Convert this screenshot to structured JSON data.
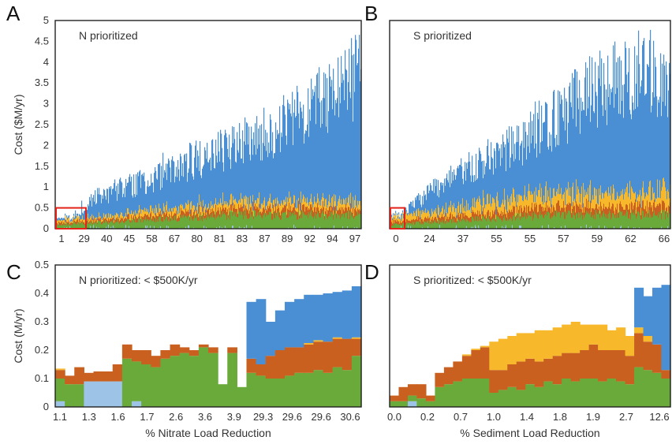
{
  "colors": {
    "total": "#4a8fd4",
    "orange": "#c9601f",
    "yellow": "#f7b92b",
    "green": "#6aaa3a",
    "lightblue": "#9dc3e6",
    "highlight": "#e2231a"
  },
  "chart_data": [
    {
      "panel": "A",
      "type": "bar",
      "title": "N prioritized",
      "ylabel": "Cost ($M/yr)",
      "xlabel": "",
      "ylim": [
        0,
        5
      ],
      "yticks": [
        "0",
        "0.5",
        "1",
        "1.5",
        "2",
        "2.5",
        "3",
        "3.5",
        "4",
        "4.5",
        "5"
      ],
      "xtick_labels": [
        "1",
        "29",
        "40",
        "45",
        "58",
        "67",
        "80",
        "81",
        "83",
        "87",
        "89",
        "92",
        "94",
        "97"
      ],
      "highlight_box": {
        "x_range": [
          "1",
          "29"
        ],
        "y_max": 0.5
      },
      "approx_series": [
        {
          "name": "",
          "color_key": "total",
          "envelope": [
            [
              0,
              0.05
            ],
            [
              0.08,
              0.35
            ],
            [
              0.12,
              0.9
            ],
            [
              0.2,
              1.2
            ],
            [
              0.3,
              1.5
            ],
            [
              0.4,
              1.9
            ],
            [
              0.5,
              2.3
            ],
            [
              0.6,
              2.6
            ],
            [
              0.7,
              3.0
            ],
            [
              0.8,
              3.5
            ],
            [
              0.9,
              4.2
            ],
            [
              1.0,
              4.8
            ]
          ]
        },
        {
          "name": "",
          "color_key": "yellow",
          "level": 0.5
        },
        {
          "name": "",
          "color_key": "orange",
          "level": 0.45
        },
        {
          "name": "",
          "color_key": "green",
          "level": 0.35
        }
      ]
    },
    {
      "panel": "B",
      "type": "bar",
      "title": "S prioritized",
      "ylabel": "",
      "xlabel": "",
      "ylim": [
        0,
        5
      ],
      "xtick_labels": [
        "0",
        "24",
        "37",
        "55",
        "55",
        "57",
        "59",
        "62",
        "66"
      ],
      "highlight_box": {
        "x_range": [
          "0",
          "24"
        ],
        "y_max": 0.5
      },
      "approx_series": [
        {
          "name": "",
          "color_key": "total",
          "envelope": [
            [
              0,
              0.05
            ],
            [
              0.05,
              0.5
            ],
            [
              0.15,
              1.2
            ],
            [
              0.3,
              2.0
            ],
            [
              0.45,
              2.6
            ],
            [
              0.6,
              3.5
            ],
            [
              0.75,
              4.4
            ],
            [
              0.9,
              4.8
            ],
            [
              1.0,
              4.5
            ]
          ]
        },
        {
          "name": "",
          "color_key": "yellow",
          "level": 1.0
        },
        {
          "name": "",
          "color_key": "orange",
          "level": 0.6
        },
        {
          "name": "",
          "color_key": "green",
          "level": 0.35
        }
      ]
    },
    {
      "panel": "C",
      "type": "bar",
      "title": "N prioritized: < $500K/yr",
      "ylabel": "Cost (M/yr)",
      "xlabel": "% Nitrate Load Reduction",
      "ylim": [
        0,
        0.5
      ],
      "yticks": [
        "0",
        "0.1",
        "0.2",
        "0.3",
        "0.4",
        "0.5"
      ],
      "xtick_labels": [
        "1.1",
        "1.3",
        "1.6",
        "1.7",
        "2.6",
        "3.6",
        "3.9",
        "29.3",
        "29.6",
        "29.6",
        "30.6"
      ],
      "stacks": [
        {
          "lightblue": 0.02,
          "green": 0.08,
          "orange": 0.03,
          "yellow": 0.005,
          "blue": 0
        },
        {
          "lightblue": 0,
          "green": 0.08,
          "orange": 0.03,
          "yellow": 0,
          "blue": 0
        },
        {
          "lightblue": 0,
          "green": 0.08,
          "orange": 0.06,
          "yellow": 0,
          "blue": 0
        },
        {
          "lightblue": 0.09,
          "green": 0,
          "orange": 0.03,
          "yellow": 0,
          "blue": 0
        },
        {
          "lightblue": 0.09,
          "green": 0,
          "orange": 0.035,
          "yellow": 0,
          "blue": 0
        },
        {
          "lightblue": 0.09,
          "green": 0,
          "orange": 0.035,
          "yellow": 0,
          "blue": 0
        },
        {
          "lightblue": 0.09,
          "green": 0,
          "orange": 0.06,
          "yellow": 0,
          "blue": 0
        },
        {
          "lightblue": 0,
          "green": 0.17,
          "orange": 0.05,
          "yellow": 0,
          "blue": 0
        },
        {
          "lightblue": 0.02,
          "green": 0.14,
          "orange": 0.04,
          "yellow": 0,
          "blue": 0
        },
        {
          "lightblue": 0,
          "green": 0.15,
          "orange": 0.05,
          "yellow": 0,
          "blue": 0
        },
        {
          "lightblue": 0,
          "green": 0.14,
          "orange": 0.04,
          "yellow": 0,
          "blue": 0
        },
        {
          "lightblue": 0,
          "green": 0.17,
          "orange": 0.03,
          "yellow": 0,
          "blue": 0
        },
        {
          "lightblue": 0,
          "green": 0.18,
          "orange": 0.04,
          "yellow": 0,
          "blue": 0
        },
        {
          "lightblue": 0,
          "green": 0.19,
          "orange": 0.02,
          "yellow": 0,
          "blue": 0
        },
        {
          "lightblue": 0,
          "green": 0.18,
          "orange": 0.02,
          "yellow": 0,
          "blue": 0
        },
        {
          "lightblue": 0,
          "green": 0.21,
          "orange": 0.01,
          "yellow": 0,
          "blue": 0
        },
        {
          "lightblue": 0,
          "green": 0.19,
          "orange": 0.02,
          "yellow": 0,
          "blue": 0
        },
        {
          "lightblue": 0,
          "green": 0.08,
          "orange": 0,
          "yellow": 0,
          "blue": 0
        },
        {
          "lightblue": 0,
          "green": 0.19,
          "orange": 0.02,
          "yellow": 0,
          "blue": 0
        },
        {
          "lightblue": 0,
          "green": 0.07,
          "orange": 0,
          "yellow": 0,
          "blue": 0
        },
        {
          "lightblue": 0,
          "green": 0.12,
          "orange": 0.05,
          "yellow": 0,
          "blue": 0.2
        },
        {
          "lightblue": 0,
          "green": 0.11,
          "orange": 0.04,
          "yellow": 0,
          "blue": 0.23
        },
        {
          "lightblue": 0,
          "green": 0.1,
          "orange": 0.08,
          "yellow": 0,
          "blue": 0.12
        },
        {
          "lightblue": 0,
          "green": 0.1,
          "orange": 0.1,
          "yellow": 0,
          "blue": 0.14
        },
        {
          "lightblue": 0,
          "green": 0.11,
          "orange": 0.1,
          "yellow": 0,
          "blue": 0.16
        },
        {
          "lightblue": 0,
          "green": 0.12,
          "orange": 0.09,
          "yellow": 0,
          "blue": 0.17
        },
        {
          "lightblue": 0,
          "green": 0.12,
          "orange": 0.1,
          "yellow": 0.005,
          "blue": 0.17
        },
        {
          "lightblue": 0,
          "green": 0.13,
          "orange": 0.1,
          "yellow": 0.005,
          "blue": 0.16
        },
        {
          "lightblue": 0,
          "green": 0.12,
          "orange": 0.11,
          "yellow": 0,
          "blue": 0.17
        },
        {
          "lightblue": 0,
          "green": 0.14,
          "orange": 0.1,
          "yellow": 0.005,
          "blue": 0.16
        },
        {
          "lightblue": 0,
          "green": 0.13,
          "orange": 0.11,
          "yellow": 0,
          "blue": 0.17
        },
        {
          "lightblue": 0,
          "green": 0.18,
          "orange": 0.06,
          "yellow": 0.005,
          "blue": 0.18
        }
      ]
    },
    {
      "panel": "D",
      "type": "bar",
      "title": "S prioritized: < $500K/yr",
      "ylabel": "",
      "xlabel": "% Sediment Load Reduction",
      "ylim": [
        0,
        0.5
      ],
      "xtick_labels": [
        "0.0",
        "0.2",
        "0.7",
        "1.0",
        "1.4",
        "1.8",
        "1.9",
        "2.7",
        "12.6"
      ],
      "stacks": [
        {
          "lightblue": 0,
          "green": 0.02,
          "orange": 0.02,
          "yellow": 0,
          "blue": 0
        },
        {
          "lightblue": 0,
          "green": 0.02,
          "orange": 0.05,
          "yellow": 0,
          "blue": 0
        },
        {
          "lightblue": 0.02,
          "green": 0.02,
          "orange": 0.04,
          "yellow": 0,
          "blue": 0
        },
        {
          "lightblue": 0,
          "green": 0.03,
          "orange": 0.05,
          "yellow": 0,
          "blue": 0
        },
        {
          "lightblue": 0,
          "green": 0.02,
          "orange": 0.02,
          "yellow": 0,
          "blue": 0
        },
        {
          "lightblue": 0,
          "green": 0.07,
          "orange": 0.05,
          "yellow": 0,
          "blue": 0
        },
        {
          "lightblue": 0,
          "green": 0.08,
          "orange": 0.06,
          "yellow": 0,
          "blue": 0
        },
        {
          "lightblue": 0,
          "green": 0.09,
          "orange": 0.07,
          "yellow": 0,
          "blue": 0
        },
        {
          "lightblue": 0,
          "green": 0.1,
          "orange": 0.08,
          "yellow": 0.005,
          "blue": 0
        },
        {
          "lightblue": 0,
          "green": 0.1,
          "orange": 0.1,
          "yellow": 0.005,
          "blue": 0
        },
        {
          "lightblue": 0,
          "green": 0.1,
          "orange": 0.11,
          "yellow": 0.005,
          "blue": 0
        },
        {
          "lightblue": 0,
          "green": 0.05,
          "orange": 0.08,
          "yellow": 0.1,
          "blue": 0
        },
        {
          "lightblue": 0,
          "green": 0.06,
          "orange": 0.07,
          "yellow": 0.11,
          "blue": 0
        },
        {
          "lightblue": 0,
          "green": 0.07,
          "orange": 0.08,
          "yellow": 0.1,
          "blue": 0
        },
        {
          "lightblue": 0,
          "green": 0.06,
          "orange": 0.1,
          "yellow": 0.1,
          "blue": 0
        },
        {
          "lightblue": 0,
          "green": 0.08,
          "orange": 0.09,
          "yellow": 0.09,
          "blue": 0
        },
        {
          "lightblue": 0,
          "green": 0.07,
          "orange": 0.09,
          "yellow": 0.11,
          "blue": 0
        },
        {
          "lightblue": 0,
          "green": 0.09,
          "orange": 0.08,
          "yellow": 0.1,
          "blue": 0
        },
        {
          "lightblue": 0,
          "green": 0.08,
          "orange": 0.1,
          "yellow": 0.1,
          "blue": 0
        },
        {
          "lightblue": 0,
          "green": 0.1,
          "orange": 0.09,
          "yellow": 0.1,
          "blue": 0
        },
        {
          "lightblue": 0,
          "green": 0.09,
          "orange": 0.1,
          "yellow": 0.11,
          "blue": 0
        },
        {
          "lightblue": 0,
          "green": 0.1,
          "orange": 0.1,
          "yellow": 0.09,
          "blue": 0
        },
        {
          "lightblue": 0,
          "green": 0.1,
          "orange": 0.12,
          "yellow": 0.07,
          "blue": 0
        },
        {
          "lightblue": 0,
          "green": 0.09,
          "orange": 0.11,
          "yellow": 0.09,
          "blue": 0
        },
        {
          "lightblue": 0,
          "green": 0.1,
          "orange": 0.1,
          "yellow": 0.07,
          "blue": 0
        },
        {
          "lightblue": 0,
          "green": 0.09,
          "orange": 0.11,
          "yellow": 0.08,
          "blue": 0
        },
        {
          "lightblue": 0,
          "green": 0.08,
          "orange": 0.1,
          "yellow": 0.07,
          "blue": 0
        },
        {
          "lightblue": 0,
          "green": 0.14,
          "orange": 0.12,
          "yellow": 0.02,
          "blue": 0.14
        },
        {
          "lightblue": 0,
          "green": 0.13,
          "orange": 0.1,
          "yellow": 0.02,
          "blue": 0.14
        },
        {
          "lightblue": 0,
          "green": 0.12,
          "orange": 0.1,
          "yellow": 0,
          "blue": 0.2
        },
        {
          "lightblue": 0,
          "green": 0.1,
          "orange": 0.03,
          "yellow": 0,
          "blue": 0.3
        }
      ]
    }
  ]
}
